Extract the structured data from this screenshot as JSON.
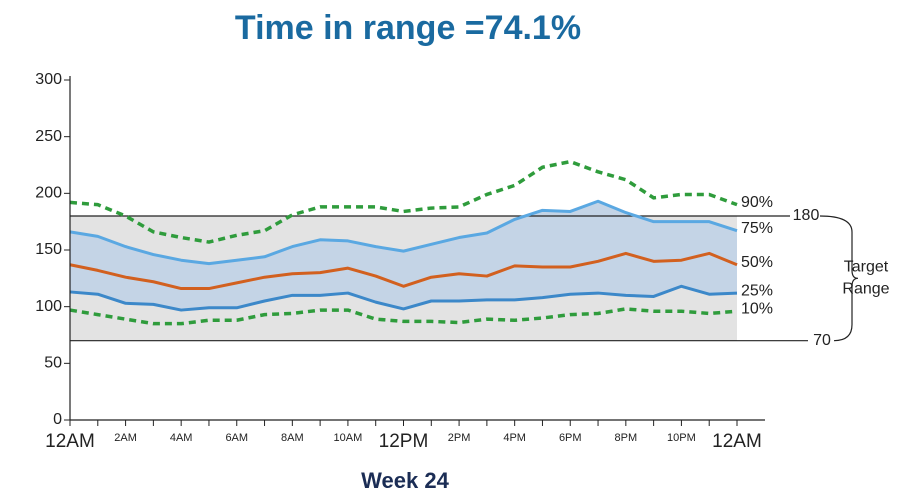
{
  "chart_data": {
    "type": "line",
    "title": "Time in range =74.1%",
    "xlabel": "Week 24",
    "x": [
      0,
      1,
      2,
      3,
      4,
      5,
      6,
      7,
      8,
      9,
      10,
      11,
      12,
      13,
      14,
      15,
      16,
      17,
      18,
      19,
      20,
      21,
      22,
      23,
      24
    ],
    "xlim": [
      0,
      24
    ],
    "xticks": [
      {
        "value": 0,
        "label": "12AM"
      },
      {
        "value": 2,
        "label": "2AM"
      },
      {
        "value": 4,
        "label": "4AM"
      },
      {
        "value": 6,
        "label": "6AM"
      },
      {
        "value": 8,
        "label": "8AM"
      },
      {
        "value": 10,
        "label": "10AM"
      },
      {
        "value": 12,
        "label": "12PM"
      },
      {
        "value": 14,
        "label": "2PM"
      },
      {
        "value": 16,
        "label": "4PM"
      },
      {
        "value": 18,
        "label": "6PM"
      },
      {
        "value": 20,
        "label": "8PM"
      },
      {
        "value": 22,
        "label": "10PM"
      },
      {
        "value": 24,
        "label": "12AM"
      }
    ],
    "ylim": [
      0,
      300
    ],
    "yticks": [
      0,
      50,
      100,
      150,
      200,
      250,
      300
    ],
    "grid": false,
    "series": [
      {
        "name": "90%",
        "color": "#2f9c3c",
        "dashed": true,
        "values": [
          192,
          190,
          180,
          166,
          161,
          157,
          163,
          167,
          181,
          188,
          188,
          188,
          184,
          187,
          188,
          199,
          207,
          223,
          228,
          219,
          212,
          196,
          199,
          199,
          190
        ]
      },
      {
        "name": "75%",
        "color": "#5aa8e2",
        "dashed": false,
        "values": [
          166,
          162,
          153,
          146,
          141,
          138,
          141,
          144,
          153,
          159,
          158,
          153,
          149,
          155,
          161,
          165,
          177,
          185,
          184,
          193,
          183,
          175,
          175,
          175,
          167
        ]
      },
      {
        "name": "50%",
        "color": "#d2601f",
        "dashed": false,
        "values": [
          137,
          132,
          126,
          122,
          116,
          116,
          121,
          126,
          129,
          130,
          134,
          127,
          118,
          126,
          129,
          127,
          136,
          135,
          135,
          140,
          147,
          140,
          141,
          147,
          137
        ]
      },
      {
        "name": "25%",
        "color": "#3c88c9",
        "dashed": false,
        "values": [
          113,
          111,
          103,
          102,
          97,
          99,
          99,
          105,
          110,
          110,
          112,
          104,
          98,
          105,
          105,
          106,
          106,
          108,
          111,
          112,
          110,
          109,
          118,
          111,
          112
        ]
      },
      {
        "name": "10%",
        "color": "#2f9c3c",
        "dashed": true,
        "values": [
          97,
          93,
          89,
          85,
          85,
          88,
          88,
          93,
          94,
          97,
          97,
          89,
          87,
          87,
          86,
          89,
          88,
          90,
          93,
          94,
          98,
          96,
          96,
          94,
          96
        ]
      }
    ],
    "band": {
      "between": [
        1,
        3
      ],
      "color": "#c4d4e6"
    },
    "target_range": {
      "low": 70,
      "high": 180,
      "color": "#e3e3e3",
      "label_lines": [
        "Target",
        "Range"
      ]
    }
  }
}
